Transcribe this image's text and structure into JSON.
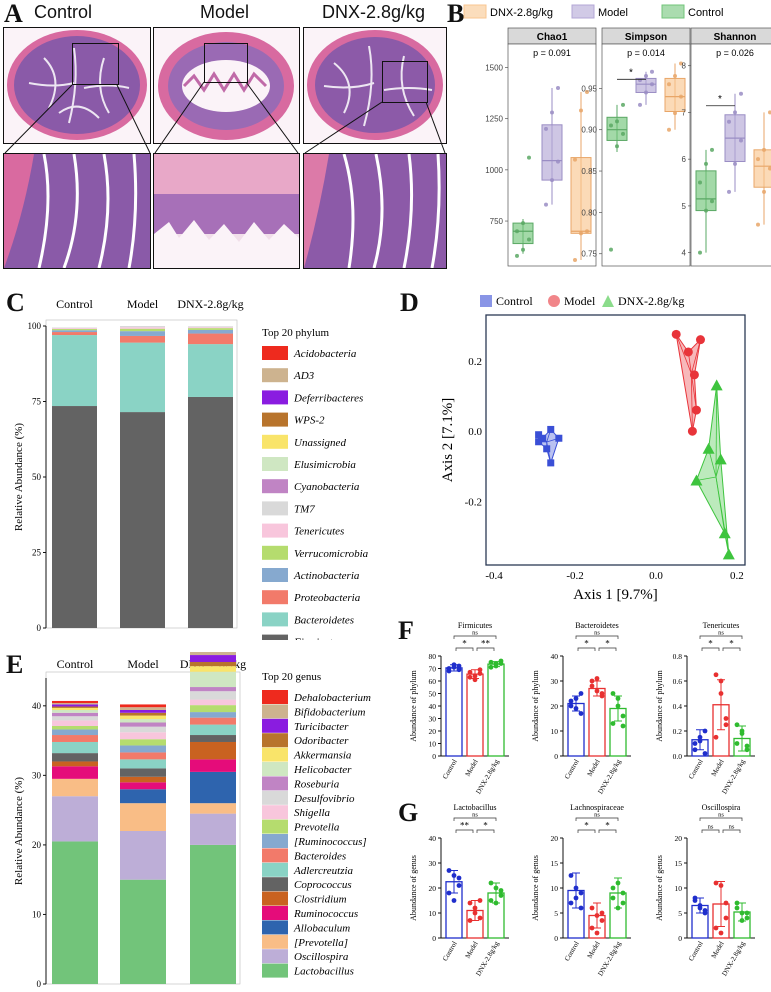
{
  "panel_labels": {
    "a": "A",
    "b": "B",
    "c": "C",
    "d": "D",
    "e": "E",
    "f": "F",
    "g": "G"
  },
  "histology": {
    "groups": [
      "Control",
      "Model",
      "DNX-2.8g/kg"
    ]
  },
  "alpha_diversity": {
    "legend": [
      "DNX-2.8g/kg",
      "Model",
      "Control"
    ],
    "colors": {
      "control": "#71c57a",
      "model": "#b3a7d6",
      "dnx": "#f9c690"
    },
    "facets": [
      {
        "title": "Chao1",
        "p": "p = 0.091",
        "yticks": [
          "750",
          "1000",
          "1250",
          "1500"
        ]
      },
      {
        "title": "Simpson",
        "p": "p = 0.014",
        "yticks": [
          "0.75",
          "0.80",
          "0.85",
          "0.90",
          "0.95"
        ],
        "sig": "*"
      },
      {
        "title": "Shannon",
        "p": "p = 0.026",
        "yticks": [
          "4",
          "5",
          "6",
          "7",
          "8"
        ],
        "sig": "*"
      }
    ]
  },
  "phylum_chart": {
    "groups": [
      "Control",
      "Model",
      "DNX-2.8g/kg"
    ],
    "ylabel": "Relative Abundance (%)",
    "yticks": [
      "0",
      "25",
      "50",
      "75",
      "100"
    ],
    "legend_title": "Top 20 phylum",
    "legend": [
      {
        "name": "Acidobacteria",
        "color": "#ee2a1e"
      },
      {
        "name": "AD3",
        "color": "#cdb38f"
      },
      {
        "name": "Deferribacteres",
        "color": "#8a1ce0"
      },
      {
        "name": "WPS-2",
        "color": "#b8742c"
      },
      {
        "name": "Unassigned",
        "color": "#f9e46a"
      },
      {
        "name": "Elusimicrobia",
        "color": "#cfe7c2"
      },
      {
        "name": "Cyanobacteria",
        "color": "#c084c4"
      },
      {
        "name": "TM7",
        "color": "#d9d9d9"
      },
      {
        "name": "Tenericutes",
        "color": "#f8c6dc"
      },
      {
        "name": "Verrucomicrobia",
        "color": "#b5dc6e"
      },
      {
        "name": "Actinobacteria",
        "color": "#86a9cf"
      },
      {
        "name": "Proteobacteria",
        "color": "#f27a6a"
      },
      {
        "name": "Bacteroidetes",
        "color": "#8ad3c5"
      },
      {
        "name": "Firmicutes",
        "color": "#636363"
      }
    ],
    "stacks": [
      [
        73.5,
        23.5,
        1.0,
        0.6,
        0.4,
        0.3,
        0.2
      ],
      [
        71.5,
        23.0,
        2.2,
        1.6,
        0.8,
        0.5,
        0.4
      ],
      [
        76.5,
        17.5,
        3.5,
        1.2,
        0.6,
        0.3,
        0.3
      ]
    ]
  },
  "pcoa": {
    "legend": [
      "Control",
      "Model",
      "DNX-2.8g/kg"
    ],
    "xlabel": "Axis 1 [9.7%]",
    "ylabel": "Axis 2 [7.1%]",
    "xticks": [
      "-0.4",
      "-0.2",
      "0.0",
      "0.2"
    ],
    "yticks": [
      "0.2",
      "0.0",
      "-0.2"
    ],
    "colors": {
      "control": "#3a4fd6",
      "model": "#e8343a",
      "dnx": "#3ec43e"
    },
    "control_points": [
      [
        -0.29,
        -0.03
      ],
      [
        -0.28,
        -0.02
      ],
      [
        -0.27,
        -0.05
      ],
      [
        -0.26,
        -0.09
      ],
      [
        -0.24,
        -0.02
      ],
      [
        -0.26,
        0.005
      ],
      [
        -0.29,
        -0.01
      ]
    ],
    "model_points": [
      [
        0.05,
        0.275
      ],
      [
        0.08,
        0.225
      ],
      [
        0.095,
        0.16
      ],
      [
        0.1,
        0.06
      ],
      [
        0.11,
        0.26
      ],
      [
        0.09,
        0.0
      ]
    ],
    "dnx_points": [
      [
        0.15,
        0.13
      ],
      [
        0.16,
        -0.08
      ],
      [
        0.1,
        -0.14
      ],
      [
        0.17,
        -0.29
      ],
      [
        0.18,
        -0.35
      ],
      [
        0.13,
        -0.05
      ]
    ]
  },
  "genus_chart": {
    "groups": [
      "Control",
      "Model",
      "DNX-2.8g/kg"
    ],
    "ylabel": "Relative Abundance (%)",
    "yticks": [
      "0",
      "10",
      "20",
      "30",
      "40"
    ],
    "legend_title": "Top 20 genus",
    "legend": [
      {
        "name": "Dehalobacterium",
        "color": "#ee2a1e"
      },
      {
        "name": "Bifidobacterium",
        "color": "#cdb38f"
      },
      {
        "name": "Turicibacter",
        "color": "#8a1ce0"
      },
      {
        "name": "Odoribacter",
        "color": "#b8742c"
      },
      {
        "name": "Akkermansia",
        "color": "#f9e46a"
      },
      {
        "name": "Helicobacter",
        "color": "#cfe7c2"
      },
      {
        "name": "Roseburia",
        "color": "#c084c4"
      },
      {
        "name": "Desulfovibrio",
        "color": "#d9d9d9"
      },
      {
        "name": "Shigella",
        "color": "#f8c6dc"
      },
      {
        "name": "Prevotella",
        "color": "#b5dc6e"
      },
      {
        "name": "[Ruminococcus]",
        "color": "#86a9cf"
      },
      {
        "name": "Bacteroides",
        "color": "#f27a6a"
      },
      {
        "name": "Adlercreutzia",
        "color": "#8ad3c5"
      },
      {
        "name": "Coprococcus",
        "color": "#636363"
      },
      {
        "name": "Clostridium",
        "color": "#c96220"
      },
      {
        "name": "Ruminococcus",
        "color": "#e50c7a"
      },
      {
        "name": "Allobaculum",
        "color": "#2e64ae"
      },
      {
        "name": "[Prevotella]",
        "color": "#f9bd86"
      },
      {
        "name": "Oscillospira",
        "color": "#bdaed7"
      },
      {
        "name": "Lactobacillus",
        "color": "#72c47a"
      }
    ]
  },
  "chart_data": [
    {
      "type": "bar",
      "title": "Firmicutes",
      "ylabel": "Abundance of phylum",
      "categories": [
        "Control",
        "Model",
        "DNX-2.8g/kg"
      ],
      "values": [
        70.5,
        65.5,
        73.5
      ],
      "errors": [
        2.5,
        3.5,
        2.0
      ],
      "ylim": [
        0,
        80
      ],
      "yticks": [
        "0",
        "10",
        "20",
        "30",
        "40",
        "50",
        "60",
        "70",
        "80"
      ],
      "points": [
        [
          68,
          71,
          72,
          70,
          73,
          69
        ],
        [
          63,
          61,
          66,
          67,
          64,
          69
        ],
        [
          75,
          72,
          74,
          71,
          74,
          76
        ]
      ],
      "sig": [
        {
          "a": 0,
          "b": 1,
          "label": "*"
        },
        {
          "a": 1,
          "b": 2,
          "label": "**"
        },
        {
          "a": 0,
          "b": 2,
          "label": "ns"
        }
      ]
    },
    {
      "type": "bar",
      "title": "Bacteroidetes",
      "ylabel": "Abundance of phylum",
      "categories": [
        "Control",
        "Model",
        "DNX-2.8g/kg"
      ],
      "values": [
        21,
        27,
        19
      ],
      "errors": [
        3,
        3,
        5
      ],
      "ylim": [
        0,
        40
      ],
      "yticks": [
        "0",
        "10",
        "20",
        "30",
        "40"
      ],
      "points": [
        [
          20,
          23,
          17,
          22,
          19,
          25
        ],
        [
          30,
          26,
          24,
          28,
          31,
          25
        ],
        [
          25,
          23,
          16,
          13,
          20,
          12
        ]
      ],
      "sig": [
        {
          "a": 0,
          "b": 1,
          "label": "*"
        },
        {
          "a": 1,
          "b": 2,
          "label": "*"
        },
        {
          "a": 0,
          "b": 2,
          "label": "ns"
        }
      ]
    },
    {
      "type": "bar",
      "title": "Tenericutes",
      "ylabel": "Abundance of phylum",
      "categories": [
        "Control",
        "Model",
        "DNX-2.8g/kg"
      ],
      "values": [
        0.13,
        0.41,
        0.14
      ],
      "errors": [
        0.08,
        0.2,
        0.1
      ],
      "ylim": [
        0,
        0.8
      ],
      "yticks": [
        "0.0",
        "0.2",
        "0.4",
        "0.6",
        "0.8"
      ],
      "points": [
        [
          0.05,
          0.15,
          0.2,
          0.1,
          0.12,
          0.02
        ],
        [
          0.65,
          0.5,
          0.3,
          0.15,
          0.6,
          0.25
        ],
        [
          0.25,
          0.18,
          0.05,
          0.1,
          0.2,
          0.08
        ]
      ],
      "sig": [
        {
          "a": 0,
          "b": 1,
          "label": "*"
        },
        {
          "a": 1,
          "b": 2,
          "label": "*"
        },
        {
          "a": 0,
          "b": 2,
          "label": "ns"
        }
      ]
    },
    {
      "type": "bar",
      "title": "Lactobacillus",
      "ylabel": "Abundance of genus",
      "categories": [
        "Control",
        "Model",
        "DNX-2.8g/kg"
      ],
      "values": [
        22.5,
        11,
        18
      ],
      "errors": [
        4.5,
        4,
        4
      ],
      "ylim": [
        0,
        40
      ],
      "yticks": [
        "0",
        "10",
        "20",
        "30",
        "40"
      ],
      "points": [
        [
          27,
          25,
          21,
          18,
          15,
          24
        ],
        [
          14,
          12,
          8,
          7,
          10,
          15
        ],
        [
          22,
          20,
          17,
          15,
          14,
          19
        ]
      ],
      "sig": [
        {
          "a": 0,
          "b": 1,
          "label": "**"
        },
        {
          "a": 1,
          "b": 2,
          "label": "*"
        },
        {
          "a": 0,
          "b": 2,
          "label": "ns"
        }
      ]
    },
    {
      "type": "bar",
      "title": "Lachnospiraceae",
      "ylabel": "Abundance of genus",
      "categories": [
        "Control",
        "Model",
        "DNX-2.8g/kg"
      ],
      "values": [
        9.5,
        4.5,
        9
      ],
      "errors": [
        3.5,
        2.5,
        3
      ],
      "ylim": [
        0,
        20
      ],
      "yticks": [
        "0",
        "5",
        "10",
        "15",
        "20"
      ],
      "points": [
        [
          12.5,
          8,
          9,
          7,
          10,
          6
        ],
        [
          6,
          4.5,
          3.5,
          2,
          1,
          5
        ],
        [
          10,
          11,
          7,
          8,
          6,
          9
        ]
      ],
      "sig": [
        {
          "a": 0,
          "b": 1,
          "label": "*"
        },
        {
          "a": 1,
          "b": 2,
          "label": "*"
        },
        {
          "a": 0,
          "b": 2,
          "label": "ns"
        }
      ]
    },
    {
      "type": "bar",
      "title": "Oscillospira",
      "ylabel": "Abundance of genus",
      "categories": [
        "Control",
        "Model",
        "DNX-2.8g/kg"
      ],
      "values": [
        6.5,
        6.8,
        5.2
      ],
      "errors": [
        1.5,
        4.5,
        1.8
      ],
      "ylim": [
        0,
        20
      ],
      "yticks": [
        "0",
        "5",
        "10",
        "15",
        "20"
      ],
      "points": [
        [
          7.5,
          6,
          5.5,
          8,
          6.5,
          5
        ],
        [
          11,
          10.5,
          4,
          2,
          1,
          7
        ],
        [
          6,
          5,
          4,
          7,
          3.5,
          5
        ]
      ],
      "sig": [
        {
          "a": 0,
          "b": 1,
          "label": "ns"
        },
        {
          "a": 1,
          "b": 2,
          "label": "ns"
        },
        {
          "a": 0,
          "b": 2,
          "label": "ns"
        }
      ]
    }
  ]
}
